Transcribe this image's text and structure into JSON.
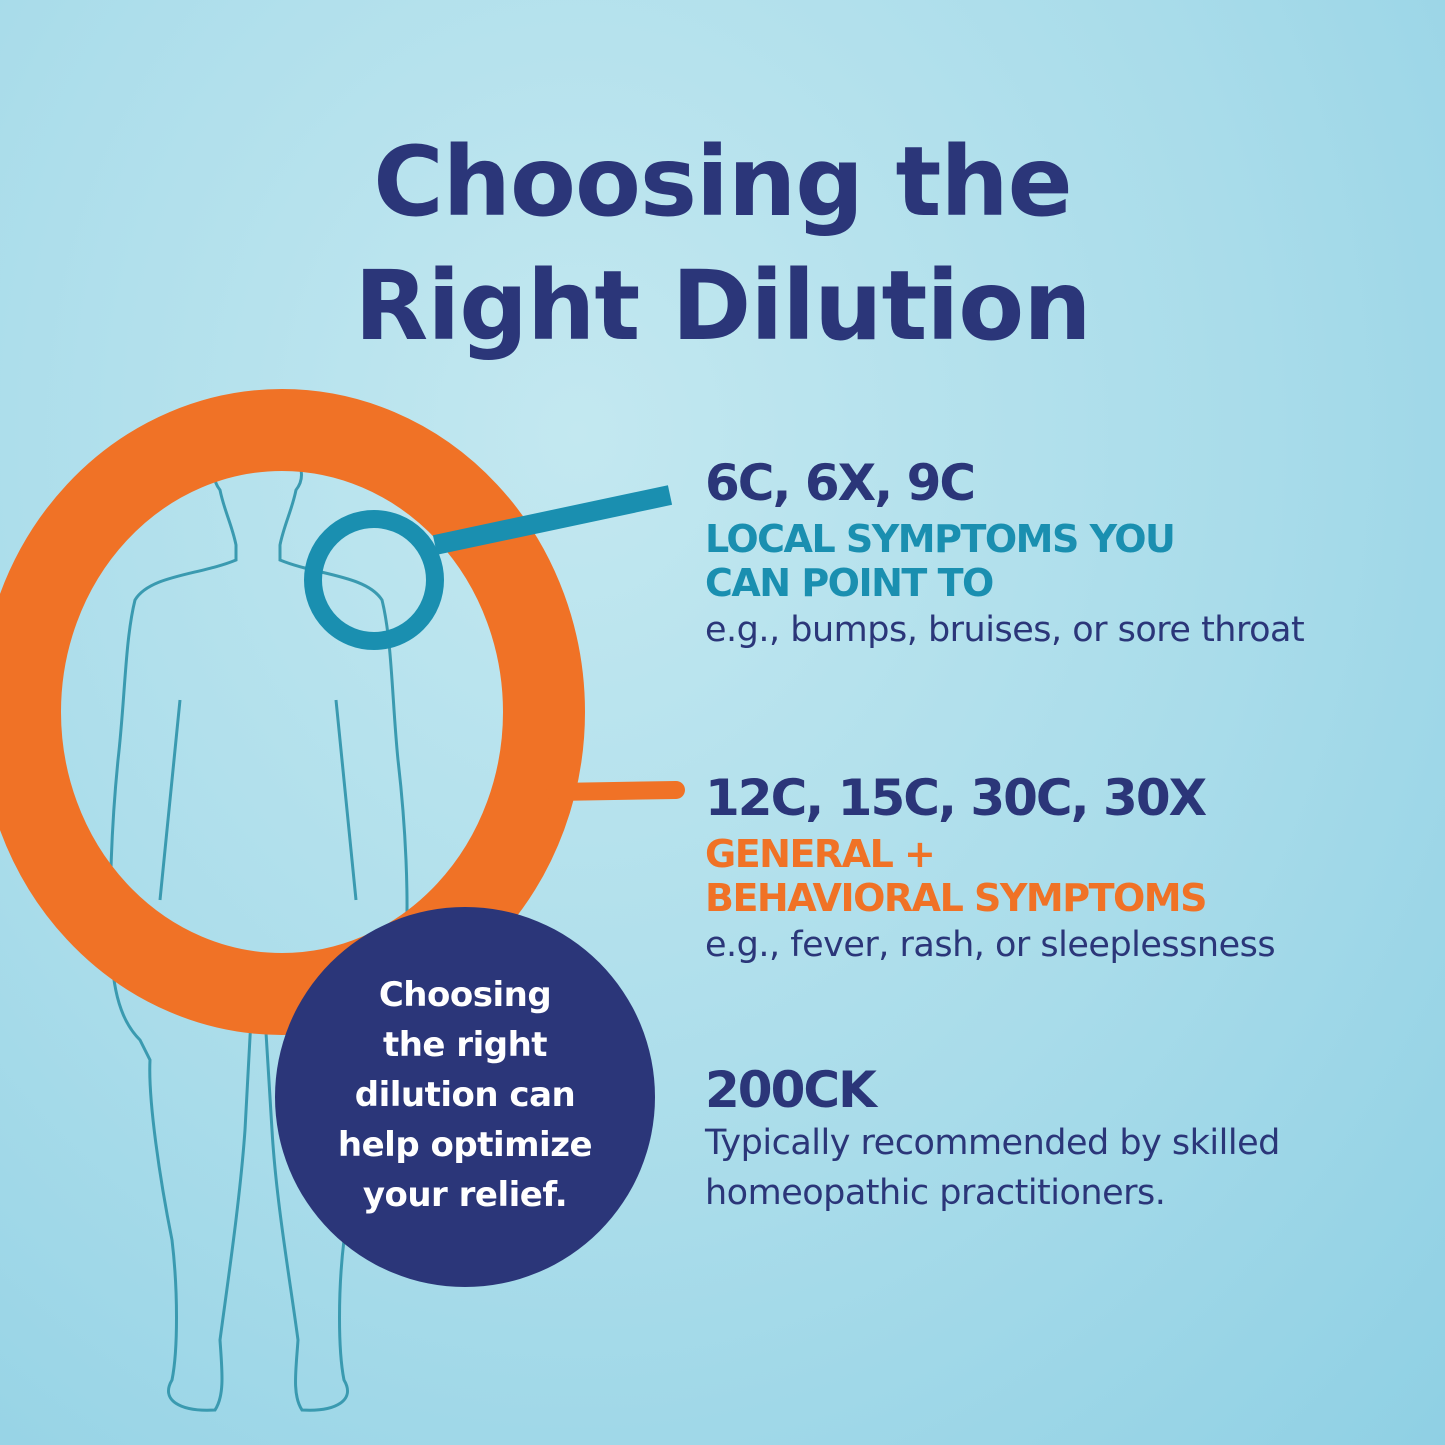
{
  "title": {
    "line1": "Choosing the",
    "line2": "Right Dilution"
  },
  "colors": {
    "navy": "#2b3679",
    "teal": "#1a8fb0",
    "orange": "#f07226",
    "background": "#a9dcea"
  },
  "sections": [
    {
      "dilutions": "6C, 6X, 9C",
      "category_lines": [
        "LOCAL SYMPTOMS YOU",
        "CAN POINT TO"
      ],
      "category_color": "#1a8fb0",
      "example": "e.g., bumps, bruises, or sore throat"
    },
    {
      "dilutions": "12C, 15C, 30C, 30X",
      "category_lines": [
        "GENERAL +",
        "BEHAVIORAL SYMPTOMS"
      ],
      "category_color": "#f07226",
      "example": "e.g., fever, rash, or sleeplessness"
    },
    {
      "dilutions": "200CK",
      "description_lines": [
        "Typically recommended by skilled",
        "homeopathic practitioners."
      ]
    }
  ],
  "bubble": {
    "lines": [
      "Choosing",
      "the right",
      "dilution can",
      "help optimize",
      "your relief."
    ]
  },
  "illustration": {
    "figure": "human-body-silhouette",
    "local_marker": "teal-ring",
    "general_marker": "orange-ring"
  }
}
